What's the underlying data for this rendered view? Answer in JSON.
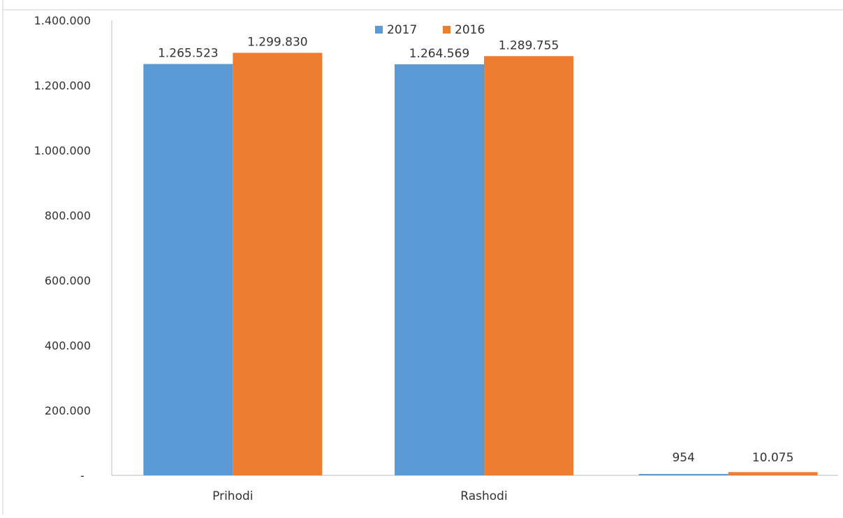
{
  "chart_data": {
    "type": "bar",
    "title": "",
    "xlabel": "",
    "ylabel": "",
    "categories": [
      "Prihodi",
      "Rashodi",
      ""
    ],
    "series": [
      {
        "name": "2017",
        "color": "#5B9BD5",
        "values": [
          1265523,
          1264569,
          954
        ],
        "labels": [
          "1.265.523",
          "1.264.569",
          "954"
        ]
      },
      {
        "name": "2016",
        "color": "#ED7D31",
        "values": [
          1299830,
          1289755,
          10075
        ],
        "labels": [
          "1.299.830",
          "1.289.755",
          "10.075"
        ]
      }
    ],
    "ylim": [
      0,
      1400000
    ],
    "yticks": [
      0,
      200000,
      400000,
      600000,
      800000,
      1000000,
      1200000,
      1400000
    ],
    "ytick_labels": [
      "-",
      "200.000",
      "400.000",
      "600.000",
      "800.000",
      "1.000.000",
      "1.200.000",
      "1.400.000"
    ],
    "grid": false,
    "legend_position": "top-center"
  }
}
